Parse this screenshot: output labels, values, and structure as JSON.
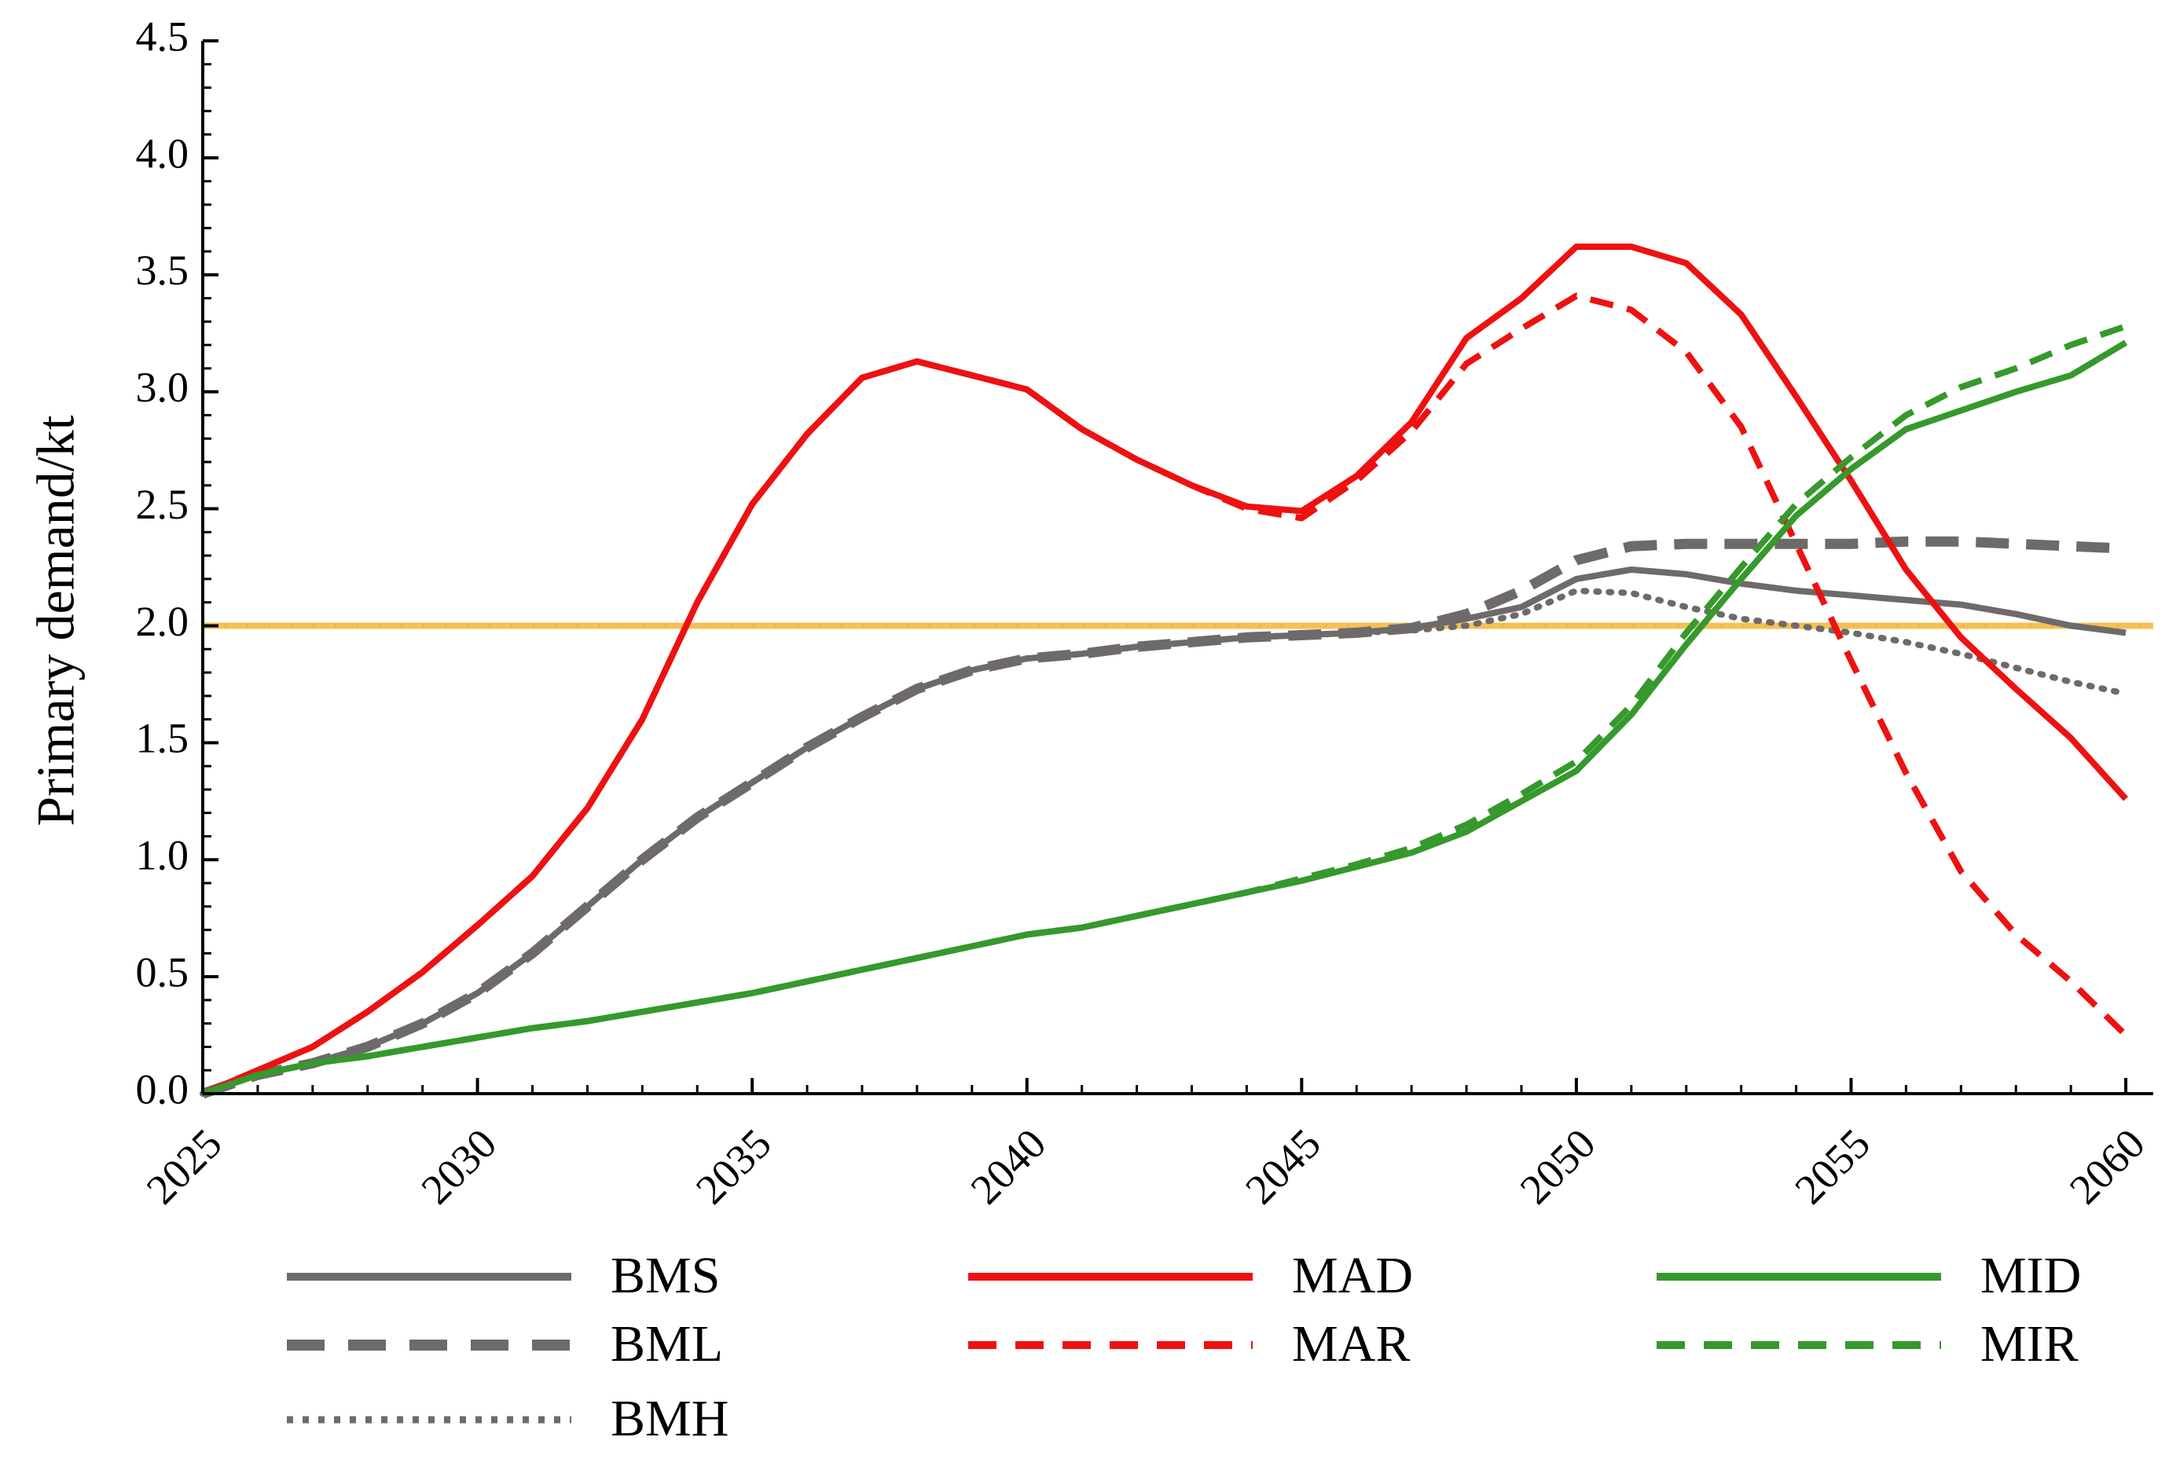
{
  "chart_data": {
    "type": "line",
    "title": "",
    "xlabel": "",
    "ylabel": "Primary demand/kt",
    "xlim": [
      2025,
      2060.5
    ],
    "ylim": [
      0,
      4.5
    ],
    "yticks": [
      "0.0",
      "0.5",
      "1.0",
      "1.5",
      "2.0",
      "2.5",
      "3.0",
      "3.5",
      "4.0",
      "4.5"
    ],
    "xticks": [
      "2025",
      "2030",
      "2035",
      "2040",
      "2045",
      "2050",
      "2055",
      "2060"
    ],
    "x": [
      2025,
      2026,
      2027,
      2028,
      2029,
      2030,
      2031,
      2032,
      2033,
      2034,
      2035,
      2036,
      2037,
      2038,
      2039,
      2040,
      2041,
      2042,
      2043,
      2044,
      2045,
      2046,
      2047,
      2048,
      2049,
      2050,
      2051,
      2052,
      2053,
      2054,
      2055,
      2056,
      2057,
      2058,
      2059,
      2060
    ],
    "reference_line": {
      "value": 2.0,
      "color": "#f5b942"
    },
    "series": [
      {
        "name": "BMS",
        "color": "#6e6a6a",
        "style": "solid",
        "values": [
          0,
          0.08,
          0.13,
          0.2,
          0.3,
          0.43,
          0.6,
          0.8,
          1.0,
          1.18,
          1.33,
          1.48,
          1.61,
          1.73,
          1.81,
          1.86,
          1.88,
          1.91,
          1.93,
          1.95,
          1.96,
          1.97,
          1.99,
          2.03,
          2.08,
          2.2,
          2.24,
          2.22,
          2.18,
          2.15,
          2.13,
          2.11,
          2.09,
          2.05,
          2.0,
          1.97
        ]
      },
      {
        "name": "BML",
        "color": "#6e6a6a",
        "style": "dashed",
        "values": [
          0,
          0.08,
          0.13,
          0.2,
          0.3,
          0.43,
          0.6,
          0.8,
          1.0,
          1.18,
          1.33,
          1.48,
          1.61,
          1.73,
          1.81,
          1.86,
          1.88,
          1.91,
          1.93,
          1.95,
          1.96,
          1.97,
          1.99,
          2.05,
          2.15,
          2.28,
          2.34,
          2.35,
          2.35,
          2.35,
          2.35,
          2.36,
          2.36,
          2.35,
          2.34,
          2.33
        ]
      },
      {
        "name": "BMH",
        "color": "#6e6a6a",
        "style": "dotted",
        "values": [
          0,
          0.08,
          0.13,
          0.2,
          0.3,
          0.43,
          0.6,
          0.8,
          1.0,
          1.18,
          1.33,
          1.48,
          1.61,
          1.73,
          1.81,
          1.86,
          1.88,
          1.91,
          1.93,
          1.95,
          1.96,
          1.97,
          1.98,
          2.0,
          2.05,
          2.15,
          2.14,
          2.08,
          2.03,
          2.0,
          1.97,
          1.93,
          1.88,
          1.82,
          1.76,
          1.71
        ]
      },
      {
        "name": "MAD",
        "color": "#ee1111",
        "style": "solid",
        "values": [
          0,
          0.1,
          0.2,
          0.35,
          0.52,
          0.72,
          0.93,
          1.22,
          1.6,
          2.1,
          2.52,
          2.82,
          3.06,
          3.13,
          3.07,
          3.01,
          2.84,
          2.71,
          2.6,
          2.51,
          2.49,
          2.64,
          2.87,
          3.23,
          3.4,
          3.62,
          3.62,
          3.55,
          3.33,
          2.98,
          2.62,
          2.24,
          1.95,
          1.73,
          1.52,
          1.26
        ]
      },
      {
        "name": "MAR",
        "color": "#ee1111",
        "style": "dashed",
        "values": [
          0,
          0.1,
          0.2,
          0.35,
          0.52,
          0.72,
          0.93,
          1.22,
          1.6,
          2.1,
          2.52,
          2.82,
          3.06,
          3.13,
          3.07,
          3.01,
          2.84,
          2.71,
          2.6,
          2.5,
          2.46,
          2.62,
          2.83,
          3.12,
          3.27,
          3.41,
          3.35,
          3.17,
          2.85,
          2.35,
          1.85,
          1.37,
          0.95,
          0.68,
          0.48,
          0.25
        ]
      },
      {
        "name": "MID",
        "color": "#35992c",
        "style": "solid",
        "values": [
          0,
          0.08,
          0.13,
          0.16,
          0.2,
          0.24,
          0.28,
          0.31,
          0.35,
          0.39,
          0.43,
          0.48,
          0.53,
          0.58,
          0.63,
          0.68,
          0.71,
          0.76,
          0.81,
          0.86,
          0.91,
          0.97,
          1.03,
          1.12,
          1.25,
          1.38,
          1.62,
          1.92,
          2.2,
          2.47,
          2.67,
          2.84,
          2.92,
          3.0,
          3.07,
          3.21
        ]
      },
      {
        "name": "MIR",
        "color": "#35992c",
        "style": "dashed",
        "values": [
          0,
          0.08,
          0.13,
          0.16,
          0.2,
          0.24,
          0.28,
          0.31,
          0.35,
          0.39,
          0.43,
          0.48,
          0.53,
          0.58,
          0.63,
          0.68,
          0.71,
          0.76,
          0.81,
          0.86,
          0.92,
          0.98,
          1.05,
          1.15,
          1.28,
          1.42,
          1.66,
          1.97,
          2.25,
          2.52,
          2.72,
          2.9,
          3.02,
          3.1,
          3.2,
          3.28
        ]
      }
    ],
    "legend": {
      "placement": "bottom",
      "entries": [
        "BMS",
        "BML",
        "BMH",
        "MAD",
        "MAR",
        "MID",
        "MIR"
      ]
    }
  }
}
